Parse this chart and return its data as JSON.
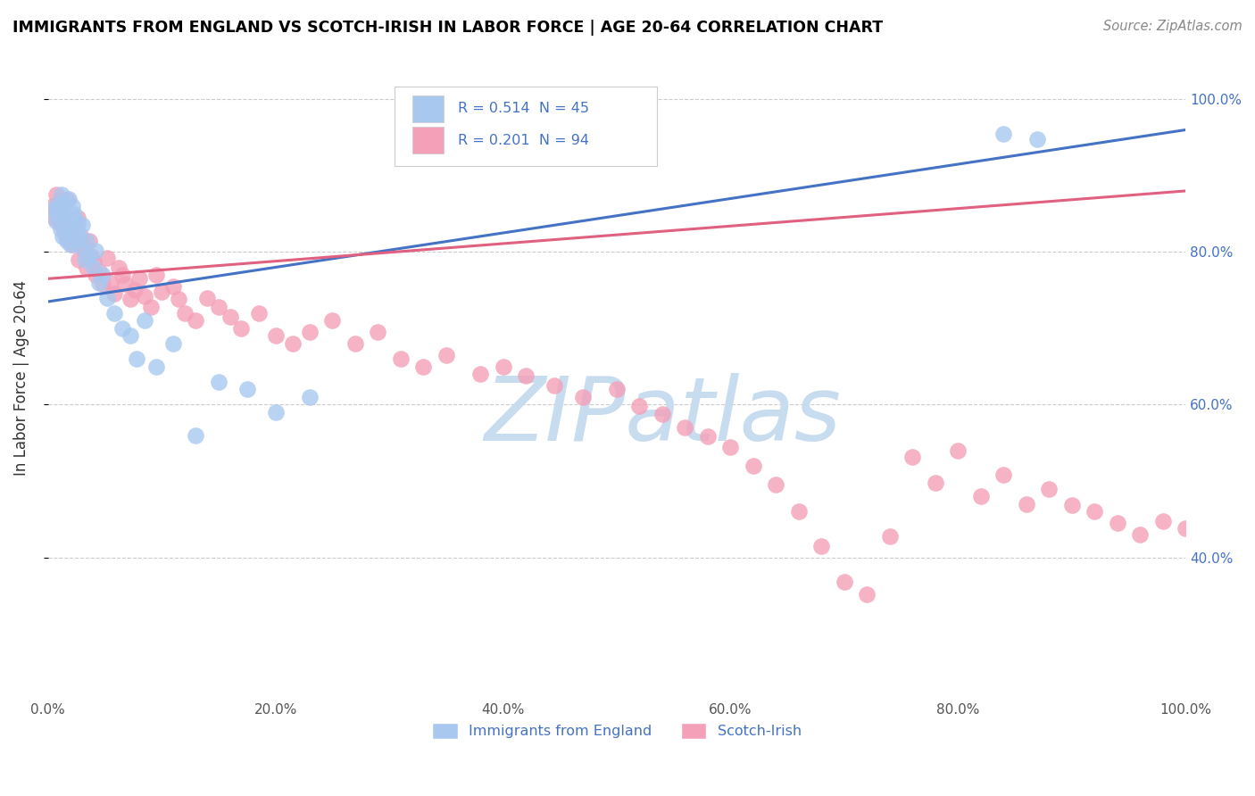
{
  "title": "IMMIGRANTS FROM ENGLAND VS SCOTCH-IRISH IN LABOR FORCE | AGE 20-64 CORRELATION CHART",
  "source": "Source: ZipAtlas.com",
  "ylabel": "In Labor Force | Age 20-64",
  "blue_R": 0.514,
  "blue_N": 45,
  "pink_R": 0.201,
  "pink_N": 94,
  "blue_color": "#A8C8F0",
  "pink_color": "#F4A0B8",
  "blue_line_color": "#4472C4",
  "pink_line_color": "#E06080",
  "legend_label_blue": "Immigrants from England",
  "legend_label_pink": "Scotch-Irish",
  "xlim": [
    0.0,
    1.0
  ],
  "ylim": [
    0.22,
    1.05
  ],
  "xticks": [
    0.0,
    0.2,
    0.4,
    0.6,
    0.8,
    1.0
  ],
  "yticks_right": [
    0.4,
    0.6,
    0.8,
    1.0
  ],
  "xticklabels": [
    "0.0%",
    "20.0%",
    "40.0%",
    "60.0%",
    "80.0%",
    "100.0%"
  ],
  "yticklabels_right": [
    "40.0%",
    "60.0%",
    "80.0%",
    "100.0%"
  ],
  "blue_scatter_x": [
    0.005,
    0.007,
    0.008,
    0.009,
    0.01,
    0.011,
    0.012,
    0.013,
    0.014,
    0.015,
    0.016,
    0.017,
    0.018,
    0.019,
    0.02,
    0.021,
    0.022,
    0.023,
    0.025,
    0.026,
    0.027,
    0.028,
    0.03,
    0.032,
    0.034,
    0.036,
    0.04,
    0.042,
    0.045,
    0.048,
    0.052,
    0.058,
    0.065,
    0.072,
    0.078,
    0.085,
    0.095,
    0.11,
    0.13,
    0.15,
    0.175,
    0.2,
    0.23,
    0.84,
    0.87
  ],
  "blue_scatter_y": [
    0.855,
    0.84,
    0.862,
    0.848,
    0.858,
    0.83,
    0.875,
    0.82,
    0.865,
    0.845,
    0.835,
    0.815,
    0.87,
    0.825,
    0.81,
    0.86,
    0.842,
    0.85,
    0.828,
    0.838,
    0.818,
    0.808,
    0.835,
    0.79,
    0.815,
    0.795,
    0.78,
    0.802,
    0.76,
    0.77,
    0.74,
    0.72,
    0.7,
    0.69,
    0.66,
    0.71,
    0.65,
    0.68,
    0.56,
    0.63,
    0.62,
    0.59,
    0.61,
    0.955,
    0.948
  ],
  "pink_scatter_x": [
    0.004,
    0.006,
    0.007,
    0.008,
    0.009,
    0.01,
    0.011,
    0.012,
    0.013,
    0.014,
    0.015,
    0.016,
    0.017,
    0.018,
    0.019,
    0.02,
    0.021,
    0.022,
    0.023,
    0.025,
    0.026,
    0.027,
    0.028,
    0.03,
    0.032,
    0.034,
    0.036,
    0.038,
    0.04,
    0.042,
    0.045,
    0.048,
    0.052,
    0.055,
    0.058,
    0.062,
    0.065,
    0.068,
    0.072,
    0.076,
    0.08,
    0.085,
    0.09,
    0.095,
    0.1,
    0.11,
    0.115,
    0.12,
    0.13,
    0.14,
    0.15,
    0.16,
    0.17,
    0.185,
    0.2,
    0.215,
    0.23,
    0.25,
    0.27,
    0.29,
    0.31,
    0.33,
    0.35,
    0.38,
    0.4,
    0.42,
    0.445,
    0.47,
    0.5,
    0.52,
    0.54,
    0.56,
    0.58,
    0.6,
    0.62,
    0.64,
    0.66,
    0.68,
    0.7,
    0.72,
    0.74,
    0.76,
    0.78,
    0.8,
    0.82,
    0.84,
    0.86,
    0.88,
    0.9,
    0.92,
    0.94,
    0.96,
    0.98,
    1.0
  ],
  "pink_scatter_y": [
    0.86,
    0.845,
    0.875,
    0.85,
    0.855,
    0.838,
    0.87,
    0.842,
    0.862,
    0.83,
    0.84,
    0.82,
    0.868,
    0.832,
    0.815,
    0.825,
    0.81,
    0.828,
    0.818,
    0.835,
    0.845,
    0.79,
    0.822,
    0.81,
    0.8,
    0.78,
    0.815,
    0.795,
    0.788,
    0.77,
    0.775,
    0.758,
    0.792,
    0.76,
    0.745,
    0.78,
    0.77,
    0.758,
    0.738,
    0.75,
    0.765,
    0.742,
    0.728,
    0.77,
    0.748,
    0.755,
    0.738,
    0.72,
    0.71,
    0.74,
    0.728,
    0.715,
    0.7,
    0.72,
    0.69,
    0.68,
    0.695,
    0.71,
    0.68,
    0.695,
    0.66,
    0.65,
    0.665,
    0.64,
    0.65,
    0.638,
    0.625,
    0.61,
    0.62,
    0.598,
    0.588,
    0.57,
    0.558,
    0.545,
    0.52,
    0.495,
    0.46,
    0.415,
    0.368,
    0.352,
    0.428,
    0.532,
    0.498,
    0.54,
    0.48,
    0.508,
    0.47,
    0.49,
    0.468,
    0.46,
    0.445,
    0.43,
    0.448,
    0.438
  ],
  "watermark": "ZIPatlas",
  "watermark_color": "#C8DCF0"
}
